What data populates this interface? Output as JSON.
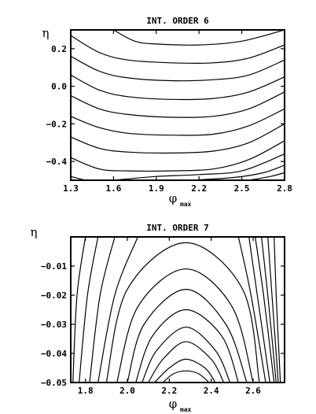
{
  "chart_data": [
    {
      "type": "line",
      "title": "INT. ORDER 6",
      "xlabel": "φ",
      "xlabel_sub": "max",
      "ylabel": "η",
      "xlim": [
        1.3,
        2.8
      ],
      "ylim": [
        -0.5,
        0.3
      ],
      "xticks": [
        1.3,
        1.6,
        1.9,
        2.2,
        2.5,
        2.8
      ],
      "xtick_labels": [
        "1.3",
        "1.6",
        "1.9",
        "2.2",
        "2.5",
        "2.8"
      ],
      "yticks": [
        0.2,
        0.0,
        -0.2,
        -0.4
      ],
      "ytick_labels": [
        "0.2",
        "0.0",
        "−0.2",
        "−0.4"
      ],
      "grid": false,
      "series": [
        {
          "values": [
            [
              1.6,
              0.3
            ],
            [
              1.75,
              0.24
            ],
            [
              1.9,
              0.225
            ],
            [
              2.2,
              0.22
            ],
            [
              2.5,
              0.24
            ],
            [
              2.8,
              0.3
            ]
          ]
        },
        {
          "values": [
            [
              1.3,
              0.27
            ],
            [
              1.5,
              0.18
            ],
            [
              1.7,
              0.14
            ],
            [
              2.0,
              0.125
            ],
            [
              2.3,
              0.125
            ],
            [
              2.55,
              0.15
            ],
            [
              2.8,
              0.22
            ]
          ]
        },
        {
          "values": [
            [
              1.3,
              0.16
            ],
            [
              1.5,
              0.08
            ],
            [
              1.7,
              0.045
            ],
            [
              2.0,
              0.03
            ],
            [
              2.3,
              0.035
            ],
            [
              2.55,
              0.06
            ],
            [
              2.8,
              0.14
            ]
          ]
        },
        {
          "values": [
            [
              1.3,
              0.06
            ],
            [
              1.5,
              -0.02
            ],
            [
              1.7,
              -0.055
            ],
            [
              2.0,
              -0.07
            ],
            [
              2.3,
              -0.065
            ],
            [
              2.55,
              -0.03
            ],
            [
              2.8,
              0.05
            ]
          ]
        },
        {
          "values": [
            [
              1.3,
              -0.05
            ],
            [
              1.5,
              -0.12
            ],
            [
              1.7,
              -0.15
            ],
            [
              2.0,
              -0.165
            ],
            [
              2.3,
              -0.16
            ],
            [
              2.55,
              -0.12
            ],
            [
              2.8,
              -0.03
            ]
          ]
        },
        {
          "values": [
            [
              1.3,
              -0.16
            ],
            [
              1.5,
              -0.22
            ],
            [
              1.7,
              -0.25
            ],
            [
              2.0,
              -0.26
            ],
            [
              2.3,
              -0.255
            ],
            [
              2.55,
              -0.21
            ],
            [
              2.8,
              -0.12
            ]
          ]
        },
        {
          "values": [
            [
              1.3,
              -0.27
            ],
            [
              1.5,
              -0.33
            ],
            [
              1.7,
              -0.35
            ],
            [
              2.0,
              -0.355
            ],
            [
              2.3,
              -0.345
            ],
            [
              2.55,
              -0.3
            ],
            [
              2.8,
              -0.2
            ]
          ]
        },
        {
          "values": [
            [
              1.3,
              -0.38
            ],
            [
              1.5,
              -0.44
            ],
            [
              1.7,
              -0.45
            ],
            [
              2.0,
              -0.45
            ],
            [
              2.3,
              -0.44
            ],
            [
              2.55,
              -0.39
            ],
            [
              2.8,
              -0.29
            ]
          ]
        },
        {
          "values": [
            [
              1.3,
              -0.48
            ],
            [
              1.4,
              -0.5
            ]
          ]
        },
        {
          "values": [
            [
              1.6,
              -0.5
            ],
            [
              1.9,
              -0.48
            ],
            [
              2.2,
              -0.47
            ],
            [
              2.5,
              -0.45
            ],
            [
              2.8,
              -0.36
            ]
          ]
        },
        {
          "values": [
            [
              2.15,
              -0.5
            ],
            [
              2.45,
              -0.485
            ],
            [
              2.65,
              -0.46
            ],
            [
              2.8,
              -0.42
            ]
          ]
        },
        {
          "values": [
            [
              2.55,
              -0.5
            ],
            [
              2.7,
              -0.48
            ],
            [
              2.8,
              -0.46
            ]
          ]
        }
      ]
    },
    {
      "type": "line",
      "title": "INT. ORDER 7",
      "xlabel": "φ",
      "xlabel_sub": "max",
      "ylabel": "η",
      "xlim": [
        1.73,
        2.75
      ],
      "ylim": [
        -0.05,
        0.0
      ],
      "xticks": [
        1.8,
        2.0,
        2.2,
        2.4,
        2.6
      ],
      "xtick_labels": [
        "1.8",
        "2.0",
        "2.2",
        "2.4",
        "2.6"
      ],
      "yticks": [
        -0.01,
        -0.02,
        -0.03,
        -0.04,
        -0.05
      ],
      "ytick_labels": [
        "−0.01",
        "−0.02",
        "−0.03",
        "−0.04",
        "−0.05"
      ],
      "grid": false,
      "peak_x": 2.28,
      "series": [
        {
          "values": [
            [
              1.8,
              0.0
            ],
            [
              1.76,
              -0.02
            ],
            [
              1.74,
              -0.05
            ]
          ]
        },
        {
          "values": [
            [
              1.86,
              0.0
            ],
            [
              1.81,
              -0.02
            ],
            [
              1.77,
              -0.05
            ]
          ]
        },
        {
          "values": [
            [
              1.94,
              0.0
            ],
            [
              1.87,
              -0.02
            ],
            [
              1.82,
              -0.05
            ]
          ]
        },
        {
          "values": [
            [
              2.05,
              0.0
            ],
            [
              1.94,
              -0.02
            ],
            [
              1.86,
              -0.05
            ]
          ]
        },
        {
          "values": [
            [
              1.9,
              -0.05
            ],
            [
              2.0,
              -0.018
            ],
            [
              2.28,
              -0.002
            ],
            [
              2.55,
              -0.018
            ],
            [
              2.63,
              -0.05
            ]
          ]
        },
        {
          "values": [
            [
              1.95,
              -0.05
            ],
            [
              2.05,
              -0.024
            ],
            [
              2.28,
              -0.011
            ],
            [
              2.5,
              -0.024
            ],
            [
              2.6,
              -0.05
            ]
          ]
        },
        {
          "values": [
            [
              2.0,
              -0.05
            ],
            [
              2.08,
              -0.03
            ],
            [
              2.28,
              -0.018
            ],
            [
              2.47,
              -0.03
            ],
            [
              2.57,
              -0.05
            ]
          ]
        },
        {
          "values": [
            [
              2.04,
              -0.05
            ],
            [
              2.12,
              -0.034
            ],
            [
              2.28,
              -0.025
            ],
            [
              2.45,
              -0.034
            ],
            [
              2.53,
              -0.05
            ]
          ]
        },
        {
          "values": [
            [
              2.07,
              -0.05
            ],
            [
              2.14,
              -0.039
            ],
            [
              2.28,
              -0.031
            ],
            [
              2.42,
              -0.039
            ],
            [
              2.49,
              -0.05
            ]
          ]
        },
        {
          "values": [
            [
              2.1,
              -0.05
            ],
            [
              2.17,
              -0.042
            ],
            [
              2.28,
              -0.036
            ],
            [
              2.4,
              -0.042
            ],
            [
              2.46,
              -0.05
            ]
          ]
        },
        {
          "values": [
            [
              2.13,
              -0.05
            ],
            [
              2.2,
              -0.045
            ],
            [
              2.28,
              -0.042
            ],
            [
              2.37,
              -0.045
            ],
            [
              2.42,
              -0.05
            ]
          ]
        },
        {
          "values": [
            [
              2.17,
              -0.05
            ],
            [
              2.22,
              -0.047
            ],
            [
              2.28,
              -0.046
            ],
            [
              2.34,
              -0.047
            ],
            [
              2.39,
              -0.05
            ]
          ]
        },
        {
          "values": [
            [
              2.53,
              0.0
            ],
            [
              2.59,
              -0.02
            ],
            [
              2.66,
              -0.05
            ]
          ]
        },
        {
          "values": [
            [
              2.58,
              0.0
            ],
            [
              2.62,
              -0.02
            ],
            [
              2.68,
              -0.05
            ]
          ]
        },
        {
          "values": [
            [
              2.61,
              0.0
            ],
            [
              2.65,
              -0.02
            ],
            [
              2.7,
              -0.05
            ]
          ]
        },
        {
          "values": [
            [
              2.64,
              0.0
            ],
            [
              2.67,
              -0.02
            ],
            [
              2.71,
              -0.05
            ]
          ]
        },
        {
          "values": [
            [
              2.67,
              0.0
            ],
            [
              2.69,
              -0.02
            ],
            [
              2.72,
              -0.05
            ]
          ]
        },
        {
          "values": [
            [
              2.7,
              0.0
            ],
            [
              2.71,
              -0.02
            ],
            [
              2.73,
              -0.05
            ]
          ]
        }
      ]
    }
  ]
}
